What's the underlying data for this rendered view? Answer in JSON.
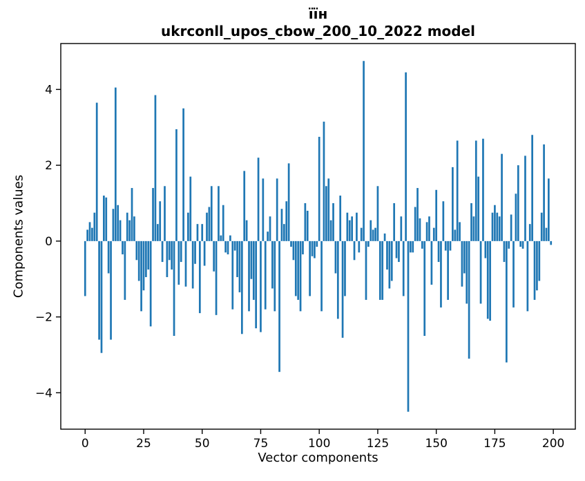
{
  "figure": {
    "title_line1": "їїн",
    "title_line2": "ukrconll_upos_cbow_200_10_2022 model",
    "xlabel": "Vector components",
    "ylabel": "Components values",
    "background_color": "#ffffff",
    "axis_color": "#000000"
  },
  "chart_data": {
    "type": "bar",
    "title": "їїн\nukrconll_upos_cbow_200_10_2022 model",
    "xlabel": "Vector components",
    "ylabel": "Components values",
    "bar_color": "#1f77b4",
    "bar_width": 0.8,
    "grid": false,
    "legend": null,
    "xticks": [
      0,
      25,
      50,
      75,
      100,
      125,
      150,
      175,
      200
    ],
    "yticks": [
      -4,
      -2,
      0,
      2,
      4
    ],
    "xlim": [
      -10.4,
      209.4
    ],
    "ylim": [
      -4.96,
      5.21
    ],
    "x_start": 0,
    "values": [
      -1.45,
      0.3,
      0.5,
      0.35,
      0.75,
      3.65,
      -2.6,
      -2.95,
      1.2,
      1.15,
      -0.85,
      -2.6,
      0.85,
      4.05,
      0.95,
      0.55,
      -0.35,
      -1.55,
      0.75,
      0.55,
      1.4,
      0.65,
      -0.5,
      -1.05,
      -1.85,
      -1.3,
      -0.95,
      -0.75,
      -2.25,
      1.4,
      3.85,
      0.45,
      1.05,
      -0.55,
      1.45,
      -0.95,
      -0.5,
      -0.75,
      -2.5,
      2.95,
      -1.15,
      -0.55,
      3.5,
      -1.2,
      0.75,
      1.7,
      -1.25,
      -0.6,
      0.45,
      -1.9,
      0.45,
      -0.65,
      0.75,
      0.9,
      1.45,
      -0.8,
      -1.95,
      1.45,
      0.15,
      0.95,
      -0.3,
      -0.35,
      0.15,
      -1.8,
      -0.25,
      -0.95,
      -1.35,
      -2.45,
      1.85,
      0.55,
      -1.85,
      -1.0,
      -1.55,
      -2.3,
      2.2,
      -2.4,
      1.65,
      -1.8,
      0.25,
      0.65,
      -1.25,
      -1.85,
      1.65,
      -3.45,
      0.85,
      0.45,
      1.05,
      2.05,
      -0.15,
      -0.5,
      -1.45,
      -1.55,
      -1.85,
      -0.35,
      1.0,
      0.8,
      -1.45,
      -0.4,
      -0.45,
      -0.15,
      2.75,
      -1.85,
      3.15,
      1.45,
      1.65,
      0.55,
      1.0,
      -0.85,
      -2.05,
      1.2,
      -2.55,
      -1.45,
      0.75,
      0.55,
      0.65,
      -0.5,
      0.75,
      -0.3,
      0.35,
      4.75,
      -1.55,
      -0.15,
      0.55,
      0.3,
      0.35,
      1.45,
      -1.55,
      -1.55,
      0.2,
      -0.75,
      -1.25,
      -1.05,
      1.0,
      -0.45,
      -0.55,
      0.65,
      -1.45,
      4.45,
      -4.5,
      -0.3,
      -0.3,
      0.9,
      1.4,
      0.6,
      -0.2,
      -2.5,
      0.5,
      0.65,
      -1.15,
      0.35,
      1.35,
      -0.55,
      -1.75,
      1.05,
      -0.25,
      -1.55,
      -0.25,
      1.95,
      0.3,
      2.65,
      0.5,
      -1.2,
      -0.85,
      -1.65,
      -3.1,
      1.0,
      0.65,
      2.65,
      1.7,
      -1.65,
      2.7,
      -0.45,
      -2.05,
      -2.1,
      0.75,
      0.95,
      0.75,
      0.65,
      2.3,
      -0.55,
      -3.2,
      -0.2,
      0.7,
      -1.75,
      1.25,
      2.0,
      -0.15,
      -0.2,
      2.25,
      -1.85,
      0.45,
      2.8,
      -1.55,
      -1.3,
      -1.05,
      0.75,
      2.55,
      0.35,
      1.65,
      -0.1
    ]
  }
}
